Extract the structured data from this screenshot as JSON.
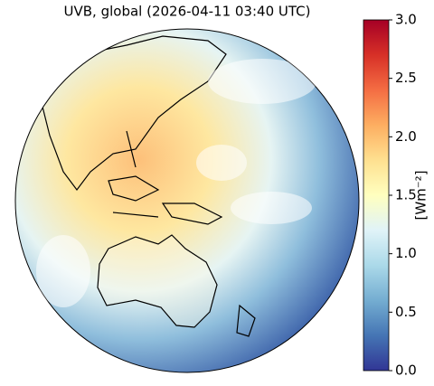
{
  "map": {
    "title": "UVB, global (2026-04-11 03:40 UTC)",
    "colorbar": {
      "label": "[Wm⁻²]",
      "lim": [
        0,
        3
      ],
      "ticks": [
        {
          "value": 0,
          "label": "0.0"
        },
        {
          "value": 0.5,
          "label": "0.5"
        },
        {
          "value": 1,
          "label": "1.0"
        },
        {
          "value": 1.5,
          "label": "1.5"
        },
        {
          "value": 2,
          "label": "2.0"
        },
        {
          "value": 2.5,
          "label": "2.5"
        },
        {
          "value": 3,
          "label": "3.0"
        }
      ],
      "colormap": [
        "#313695",
        "#4575b4",
        "#74add1",
        "#abd9e9",
        "#e0f3f8",
        "#ffffbf",
        "#fee090",
        "#fdae61",
        "#f46d43",
        "#d73027",
        "#a50026"
      ]
    }
  }
}
